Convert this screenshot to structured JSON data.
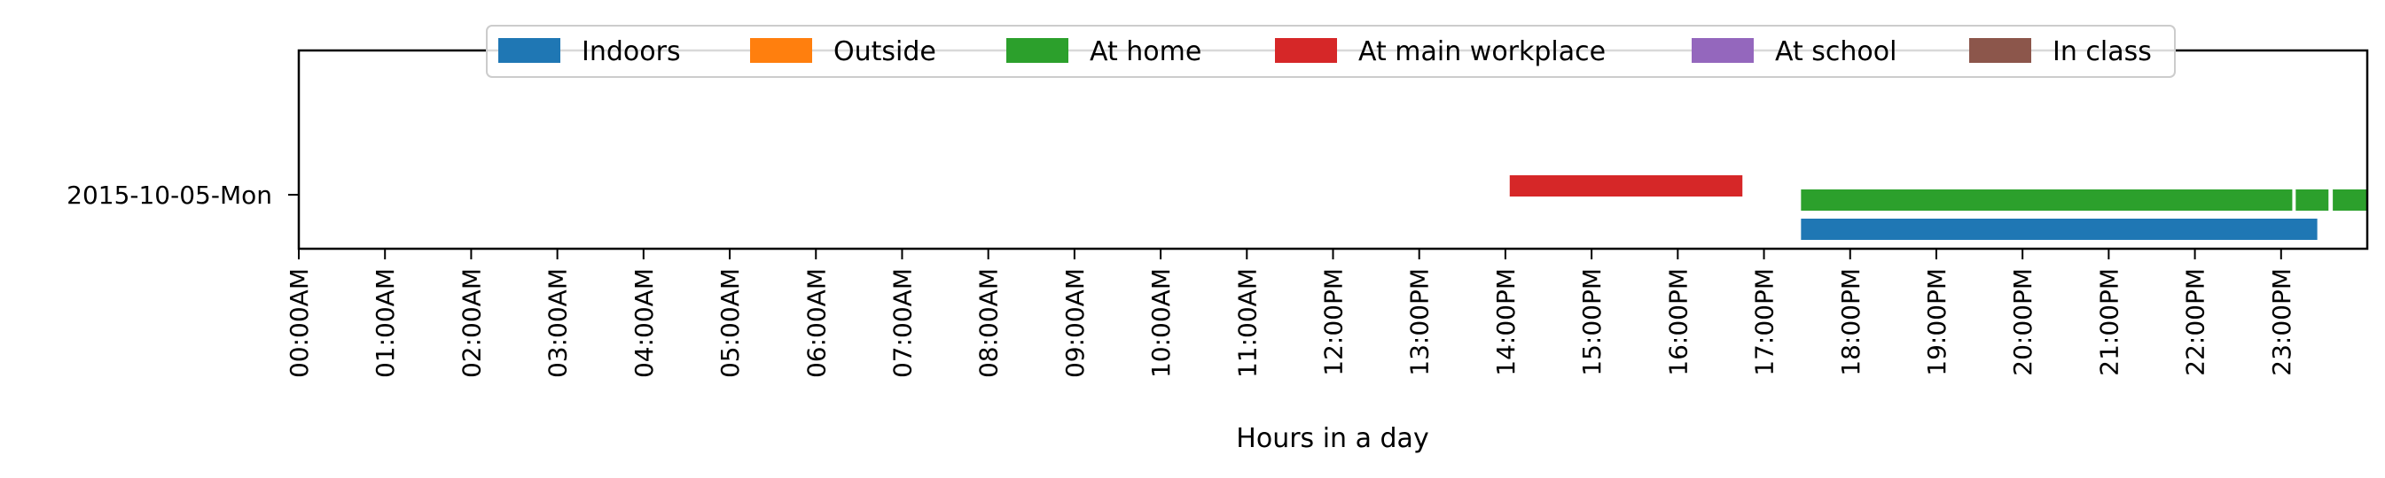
{
  "chart_data": {
    "type": "timeline",
    "xlabel": "Hours in a day",
    "xlim": [
      0,
      24
    ],
    "x_ticks": [
      "00:00AM",
      "01:00AM",
      "02:00AM",
      "03:00AM",
      "04:00AM",
      "05:00AM",
      "06:00AM",
      "07:00AM",
      "08:00AM",
      "09:00AM",
      "10:00AM",
      "11:00AM",
      "12:00PM",
      "13:00PM",
      "14:00PM",
      "15:00PM",
      "16:00PM",
      "17:00PM",
      "18:00PM",
      "19:00PM",
      "20:00PM",
      "21:00PM",
      "22:00PM",
      "23:00PM"
    ],
    "categories": [
      "2015-10-05-Mon"
    ],
    "legend_position": "top-center",
    "series": [
      {
        "name": "Indoors",
        "color": "#1f77b4",
        "intervals": [
          [
            17.43,
            23.42
          ]
        ]
      },
      {
        "name": "Outside",
        "color": "#ff7f0e",
        "intervals": []
      },
      {
        "name": "At home",
        "color": "#2ca02c",
        "intervals": [
          [
            17.43,
            23.13
          ],
          [
            23.17,
            23.55
          ],
          [
            23.6,
            24.0
          ]
        ]
      },
      {
        "name": "At main workplace",
        "color": "#d62728",
        "intervals": [
          [
            14.05,
            16.75
          ]
        ]
      },
      {
        "name": "At school",
        "color": "#9467bd",
        "intervals": []
      },
      {
        "name": "In class",
        "color": "#8c564b",
        "intervals": []
      }
    ]
  }
}
